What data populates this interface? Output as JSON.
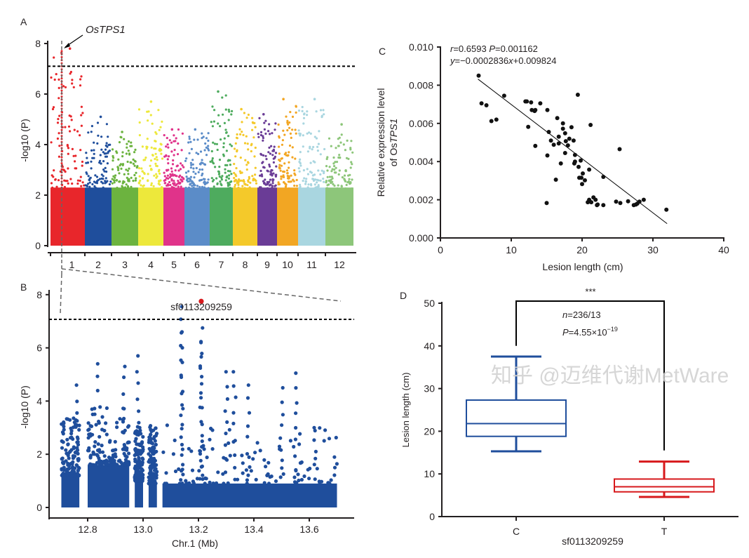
{
  "chart_data": [
    {
      "type": "scatter",
      "panel": "A",
      "subtype": "manhattan",
      "ylabel": "-log10 (P)",
      "ylim": [
        0,
        8.5
      ],
      "yticks": [
        "0",
        "2",
        "4",
        "6",
        "8"
      ],
      "threshold": 7.1,
      "annotation": "OsTPS1",
      "annotation_chr": "1",
      "chromosomes": [
        {
          "label": "1",
          "color": "#e8262b",
          "peak": 7.8,
          "span": [
            0,
            1
          ]
        },
        {
          "label": "2",
          "color": "#1f4e9c",
          "peak": 5.1
        },
        {
          "label": "3",
          "color": "#6cb33f",
          "peak": 4.5
        },
        {
          "label": "4",
          "color": "#ede83b",
          "peak": 5.7
        },
        {
          "label": "5",
          "color": "#e0338a",
          "peak": 4.6
        },
        {
          "label": "6",
          "color": "#5b8cc8",
          "peak": 4.6
        },
        {
          "label": "7",
          "color": "#4eab5e",
          "peak": 6.1
        },
        {
          "label": "8",
          "color": "#f4c92a",
          "peak": 5.4
        },
        {
          "label": "9",
          "color": "#6a3c96",
          "peak": 5.2
        },
        {
          "label": "10",
          "color": "#f2a623",
          "peak": 5.8
        },
        {
          "label": "11",
          "color": "#a9d6e0",
          "peak": 5.8
        },
        {
          "label": "12",
          "color": "#8dc67a",
          "peak": 4.8
        }
      ]
    },
    {
      "type": "scatter",
      "panel": "B",
      "subtype": "regional",
      "xlabel": "Chr.1 (Mb)",
      "ylabel": "-log10 (P)",
      "xlim": [
        12.7,
        13.75
      ],
      "ylim": [
        0,
        8.3
      ],
      "xticks": [
        "12.8",
        "13.0",
        "13.2",
        "13.4",
        "13.6"
      ],
      "yticks": [
        "0",
        "2",
        "4",
        "6",
        "8"
      ],
      "threshold": 7.1,
      "color": "#1f4e9c",
      "lead_snp": {
        "label": "sf0113209259",
        "x": 13.21,
        "y": 7.75,
        "color": "#d7191c"
      },
      "peaks": [
        [
          12.76,
          4.6
        ],
        [
          12.84,
          5.4
        ],
        [
          12.93,
          5.3
        ],
        [
          12.98,
          5.7
        ],
        [
          13.14,
          7.55
        ],
        [
          13.14,
          6.6
        ],
        [
          13.21,
          6.75
        ],
        [
          13.21,
          6.2
        ],
        [
          13.3,
          5.1
        ],
        [
          13.33,
          5.1
        ],
        [
          13.38,
          4.6
        ],
        [
          13.55,
          5.05
        ],
        [
          13.5,
          4.5
        ],
        [
          13.62,
          3.0
        ]
      ]
    },
    {
      "type": "scatter",
      "panel": "C",
      "xlabel": "Lesion length (cm)",
      "ylabel": "Relative expression level",
      "ylabel2": "of OsTPS1",
      "xlim": [
        0,
        40
      ],
      "ylim": [
        0,
        0.01
      ],
      "xticks": [
        "0",
        "10",
        "20",
        "30",
        "40"
      ],
      "yticks": [
        "0.000",
        "0.002",
        "0.004",
        "0.006",
        "0.008",
        "0.010"
      ],
      "stats_line1_r": "r",
      "stats_line1": "=0.6593 ",
      "stats_line1_p": "P",
      "stats_line1_pval": "=0.001162",
      "eq_y": "y",
      "eq_mid": "=−0.0002836",
      "eq_x": "x",
      "eq_end": "+0.009824",
      "slope": -0.0002836,
      "intercept": 0.009824,
      "fit_range": [
        5.3,
        32
      ],
      "points": [
        [
          5.4,
          0.0085
        ],
        [
          5.8,
          0.00705
        ],
        [
          6.5,
          0.00695
        ],
        [
          7.2,
          0.00612
        ],
        [
          7.9,
          0.0062
        ],
        [
          9,
          0.00745
        ],
        [
          12,
          0.00715
        ],
        [
          12.2,
          0.00715
        ],
        [
          12.8,
          0.0071
        ],
        [
          12.9,
          0.0067
        ],
        [
          13.3,
          0.00665
        ],
        [
          13.4,
          0.0067
        ],
        [
          14.1,
          0.00705
        ],
        [
          15.1,
          0.0067
        ],
        [
          12.4,
          0.00582
        ],
        [
          13.4,
          0.00482
        ],
        [
          15.1,
          0.00432
        ],
        [
          15.3,
          0.00555
        ],
        [
          15.6,
          0.0051
        ],
        [
          16,
          0.00488
        ],
        [
          16.5,
          0.00628
        ],
        [
          16.7,
          0.0053
        ],
        [
          16.7,
          0.00495
        ],
        [
          17.3,
          0.006
        ],
        [
          17.3,
          0.00572
        ],
        [
          17.6,
          0.00548
        ],
        [
          17.7,
          0.00507
        ],
        [
          18,
          0.00485
        ],
        [
          18.2,
          0.0052
        ],
        [
          18.5,
          0.0058
        ],
        [
          18.8,
          0.0051
        ],
        [
          19.4,
          0.0075
        ],
        [
          17.6,
          0.00445
        ],
        [
          19,
          0.00435
        ],
        [
          17,
          0.0039
        ],
        [
          18.9,
          0.0039
        ],
        [
          19,
          0.004
        ],
        [
          19.5,
          0.00372
        ],
        [
          19.8,
          0.00405
        ],
        [
          19.6,
          0.00315
        ],
        [
          19.9,
          0.00315
        ],
        [
          20.1,
          0.00338
        ],
        [
          20,
          0.00282
        ],
        [
          20.4,
          0.00302
        ],
        [
          16.3,
          0.00305
        ],
        [
          21,
          0.00358
        ],
        [
          21.2,
          0.00592
        ],
        [
          15,
          0.00183
        ],
        [
          20.8,
          0.00187
        ],
        [
          21,
          0.002
        ],
        [
          21.3,
          0.00187
        ],
        [
          21.6,
          0.00212
        ],
        [
          21.9,
          0.002
        ],
        [
          22.1,
          0.00172
        ],
        [
          22.2,
          0.00175
        ],
        [
          23,
          0.00172
        ],
        [
          23,
          0.0032
        ],
        [
          24.8,
          0.0019
        ],
        [
          25.3,
          0.00465
        ],
        [
          25.4,
          0.00183
        ],
        [
          26.5,
          0.00192
        ],
        [
          27.3,
          0.00172
        ],
        [
          27.6,
          0.00175
        ],
        [
          27.8,
          0.0018
        ],
        [
          28.1,
          0.0019
        ],
        [
          28.7,
          0.002
        ],
        [
          31.9,
          0.00148
        ]
      ]
    },
    {
      "type": "box",
      "panel": "D",
      "xlabel": "sf0113209259",
      "ylabel": "Lesion length (cm)",
      "ylim": [
        0,
        50
      ],
      "yticks": [
        "0",
        "10",
        "20",
        "30",
        "40",
        "50"
      ],
      "significance": "***",
      "n_prefix": "n",
      "n_text": "=236/13",
      "p_prefix": "P",
      "p_text": "=4.55×10",
      "p_exp": "−19",
      "boxes": [
        {
          "label": "C",
          "color": "#1f4e9c",
          "min": 15.3,
          "q1": 18.8,
          "median": 21.8,
          "q3": 27.3,
          "max": 37.5
        },
        {
          "label": "T",
          "color": "#d7191c",
          "min": 4.6,
          "q1": 5.8,
          "median": 7.0,
          "q3": 8.8,
          "max": 12.9
        }
      ]
    }
  ],
  "panels": {
    "a": "A",
    "b": "B",
    "c": "C",
    "d": "D"
  },
  "watermark": "知乎 @迈维代谢MetWare"
}
